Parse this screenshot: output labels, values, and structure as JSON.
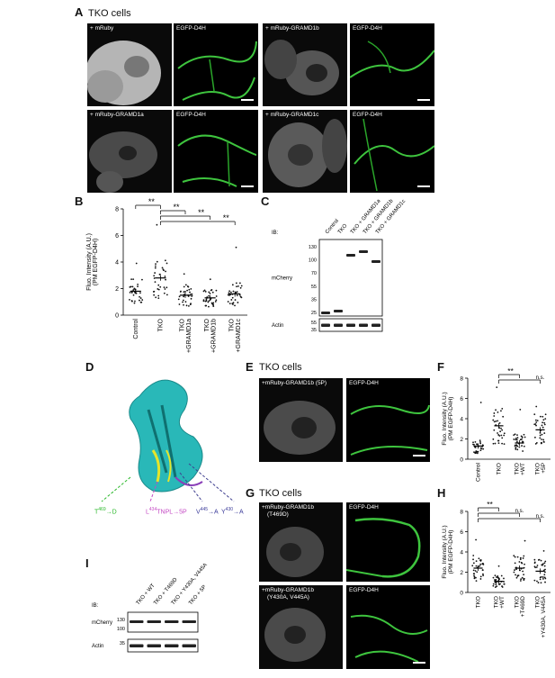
{
  "panels": {
    "A": {
      "letter": "A",
      "title": "TKO cells",
      "rows": [
        {
          "left": "+ mRuby",
          "right": "EGFP-D4H"
        },
        {
          "left": "+ mRuby-GRAMD1b",
          "right": "EGFP-D4H"
        },
        {
          "left": "+ mRuby-GRAMD1a",
          "right": "EGFP-D4H"
        },
        {
          "left": "+ mRuby-GRAMD1c",
          "right": "EGFP-D4H"
        }
      ]
    },
    "B": {
      "letter": "B"
    },
    "C": {
      "letter": "C",
      "ib": "IB:",
      "lanes": [
        "Control",
        "TKO",
        "TKO + GRAMD1a",
        "TKO + GRAMD1b",
        "TKO + GRAMD1c"
      ],
      "mw_top": [
        "130",
        "100",
        "70",
        "55",
        "35",
        "25"
      ],
      "mw_bottom": [
        "55",
        "35"
      ],
      "blot_top": "mCherry",
      "blot_bottom": "Actin"
    },
    "D": {
      "letter": "D",
      "mutations": {
        "t": "T",
        "t_sup": "469",
        "t_to": "→D",
        "l": "L",
        "l_sup": "434",
        "l_rest": "TNPL→5P",
        "v": "V",
        "v_sup": "445",
        "v_to": "→A",
        "y": "Y",
        "y_sup": "430",
        "y_to": "→A"
      }
    },
    "E": {
      "letter": "E",
      "title": "TKO cells",
      "left": "+mRuby-GRAMD1b (5P)",
      "right": "EGFP-D4H"
    },
    "F": {
      "letter": "F"
    },
    "G": {
      "letter": "G",
      "title": "TKO cells",
      "rows": [
        {
          "left1": "+mRuby-GRAMD1b",
          "left2": "(T469D)",
          "right": "EGFP-D4H"
        },
        {
          "left1": "+mRuby-GRAMD1b",
          "left2": "(Y430A, V445A)",
          "right": "EGFP-D4H"
        }
      ]
    },
    "H": {
      "letter": "H"
    },
    "I": {
      "letter": "I",
      "ib": "IB:",
      "lanes": [
        "TKO + WT",
        "TKO + T469D",
        "TKO + Y430A, V445A",
        "TKO + 5P"
      ],
      "mw_top": [
        "130",
        "100"
      ],
      "mw_bottom": [
        "35"
      ],
      "blot_top": "mCherry",
      "blot_bottom": "Actin"
    }
  },
  "chart_data": [
    {
      "panel": "B",
      "type": "scatter",
      "ylabel": "Fluo. Intensity (A.U.)",
      "ylabel2": "(PM EGFP-D4H)",
      "ylim": [
        0,
        8
      ],
      "yticks": [
        "0",
        "2",
        "4",
        "6",
        "8"
      ],
      "categories": [
        "Control",
        "TKO",
        "TKO\n+GRAMD1a",
        "TKO\n+GRAMD1b",
        "TKO\n+GRAMD1c"
      ],
      "means": [
        1.8,
        2.8,
        1.5,
        1.3,
        1.6
      ],
      "max": [
        3.9,
        6.8,
        3.1,
        2.7,
        5.1
      ],
      "significance": [
        {
          "a": 0,
          "b": 1,
          "label": "**"
        },
        {
          "a": 1,
          "b": 2,
          "label": "**"
        },
        {
          "a": 1,
          "b": 3,
          "label": "**"
        },
        {
          "a": 1,
          "b": 4,
          "label": "**"
        }
      ]
    },
    {
      "panel": "F",
      "type": "scatter",
      "ylabel": "Fluo. Intensity (A.U.)",
      "ylabel2": "(PM EGFP-D4H)",
      "ylim": [
        0,
        8
      ],
      "yticks": [
        "0",
        "2",
        "4",
        "6",
        "8"
      ],
      "categories": [
        "Control",
        "TKO",
        "TKO\n+WT",
        "TKO\n+5P"
      ],
      "means": [
        1.3,
        3.3,
        1.6,
        2.9
      ],
      "max": [
        5.6,
        7.1,
        4.9,
        5.2
      ],
      "significance": [
        {
          "a": 1,
          "b": 2,
          "label": "**"
        },
        {
          "a": 1,
          "b": 3,
          "label": "n.s."
        }
      ]
    },
    {
      "panel": "H",
      "type": "scatter",
      "ylabel": "Fluo. Intensity (A.U.)",
      "ylabel2": "(PM EGFP-D4H)",
      "ylim": [
        0,
        8
      ],
      "yticks": [
        "0",
        "2",
        "4",
        "6",
        "8"
      ],
      "categories": [
        "TKO",
        "TKO\n+WT",
        "TKO\n+T469D",
        "TKO\n+Y430A, V445A"
      ],
      "means": [
        2.4,
        1.1,
        2.4,
        2.1
      ],
      "max": [
        5.2,
        2.6,
        5.1,
        4.1
      ],
      "significance": [
        {
          "a": 0,
          "b": 1,
          "label": "**"
        },
        {
          "a": 0,
          "b": 2,
          "label": "n.s."
        },
        {
          "a": 0,
          "b": 3,
          "label": "n.s."
        }
      ]
    }
  ]
}
